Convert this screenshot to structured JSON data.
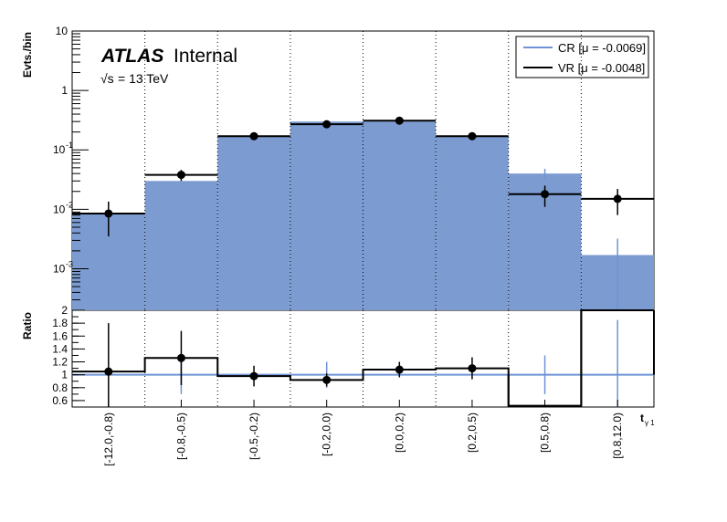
{
  "chart_data": {
    "type": "bar",
    "categories": [
      "[-12.0,-0.8)",
      "[-0.8,-0.5)",
      "[-0.5,-0.2)",
      "[-0.2,0.0)",
      "[0.0,0.2)",
      "[0.2,0.5)",
      "[0.5,0.8)",
      "[0.8,12.0)"
    ],
    "top_panel": {
      "ylabel": "Evts./bin",
      "yscale": "log",
      "ylim": [
        0.0002,
        10
      ],
      "ytick_labels": [
        "10",
        "1",
        "10^-1",
        "10^-2",
        "10^-3"
      ],
      "series": [
        {
          "name": "CR [μ = -0.0069]",
          "style": "filled",
          "values": [
            0.0085,
            0.03,
            0.17,
            0.3,
            0.3,
            0.17,
            0.04,
            0.0017
          ],
          "errors": [
            0.0,
            0.0,
            0.0,
            0.0,
            0.0,
            0.0,
            0.008,
            0.0015
          ]
        },
        {
          "name": "VR [μ = -0.0048]",
          "style": "step+points",
          "values": [
            0.0085,
            0.038,
            0.17,
            0.27,
            0.31,
            0.17,
            0.018,
            0.015
          ],
          "errors": [
            0.005,
            0.008,
            0.015,
            0.02,
            0.02,
            0.015,
            0.007,
            0.007
          ]
        }
      ]
    },
    "ratio_panel": {
      "ylabel": "Ratio",
      "ylim": [
        0.5,
        2.0
      ],
      "ytick_labels": [
        "2",
        "1.8",
        "1.6",
        "1.4",
        "1.2",
        "1",
        "0.8",
        "0.6"
      ],
      "values": [
        1.05,
        1.26,
        0.98,
        0.92,
        1.08,
        1.1,
        0.52,
        2.0
      ],
      "errors": [
        0.75,
        0.42,
        0.16,
        0.1,
        0.12,
        0.17,
        0.0,
        0.0
      ],
      "cr_errors": [
        0.0,
        0.3,
        0.0,
        0.2,
        0.0,
        0.0,
        0.3,
        0.85
      ]
    },
    "xlabel": "t",
    "xlabel_sub": "γ 1",
    "legend_position": "top-right",
    "grid": "vertical dotted at bin edges"
  },
  "labels": {
    "atlas": "ATLAS",
    "internal": "Internal",
    "sqrt_s": "= 13 TeV",
    "sqrt_s_symbol": "√s"
  },
  "colors": {
    "cr_fill": "#7b9bd1",
    "cr_line": "#6e93d6",
    "vr_line": "#000000",
    "ratio_ref": "#6e93d6"
  }
}
